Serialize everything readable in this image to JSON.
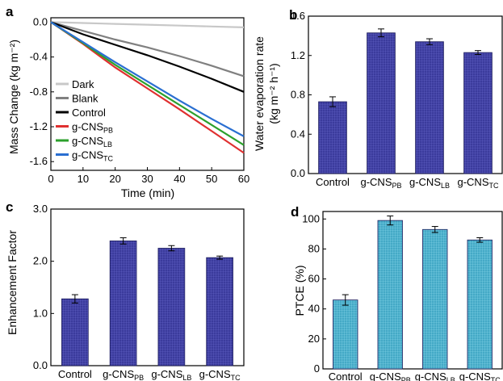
{
  "figure": {
    "panel_labels": [
      "a",
      "b",
      "c",
      "d"
    ]
  },
  "chart_data": [
    {
      "panel": "a",
      "type": "line",
      "xlabel": "Time (min)",
      "ylabel": "Mass Change (kg m⁻²)",
      "xlim": [
        0,
        60
      ],
      "ylim": [
        -1.7,
        0.05
      ],
      "x_ticks": [
        0,
        10,
        20,
        30,
        40,
        50,
        60
      ],
      "y_ticks": [
        0.0,
        -0.4,
        -0.8,
        -1.2,
        -1.6
      ],
      "y_tick_labels": [
        "0.0",
        "-0.4",
        "-0.8",
        "-1.2",
        "-1.6"
      ],
      "legend_position": "left",
      "series": [
        {
          "name": "Dark",
          "color": "#c8c8c8",
          "x": [
            0,
            10,
            20,
            30,
            40,
            50,
            60
          ],
          "y": [
            0,
            -0.01,
            -0.02,
            -0.03,
            -0.04,
            -0.05,
            -0.06
          ]
        },
        {
          "name": "Blank",
          "color": "#808080",
          "x": [
            0,
            10,
            20,
            30,
            40,
            50,
            60
          ],
          "y": [
            0,
            -0.1,
            -0.2,
            -0.29,
            -0.39,
            -0.5,
            -0.62
          ]
        },
        {
          "name": "Control",
          "color": "#000000",
          "x": [
            0,
            10,
            20,
            30,
            40,
            50,
            60
          ],
          "y": [
            0,
            -0.14,
            -0.26,
            -0.38,
            -0.51,
            -0.65,
            -0.8
          ]
        },
        {
          "name": "g-CNS",
          "sub": "PB",
          "color": "#e03030",
          "x": [
            0,
            10,
            20,
            30,
            40,
            50,
            60
          ],
          "y": [
            0,
            -0.25,
            -0.52,
            -0.76,
            -1.0,
            -1.25,
            -1.5
          ]
        },
        {
          "name": "g-CNS",
          "sub": "LB",
          "color": "#2ca02c",
          "x": [
            0,
            10,
            20,
            30,
            40,
            50,
            60
          ],
          "y": [
            0,
            -0.24,
            -0.49,
            -0.72,
            -0.95,
            -1.18,
            -1.41
          ]
        },
        {
          "name": "g-CNS",
          "sub": "TC",
          "color": "#2a6fd1",
          "x": [
            0,
            10,
            20,
            30,
            40,
            50,
            60
          ],
          "y": [
            0,
            -0.23,
            -0.46,
            -0.68,
            -0.9,
            -1.11,
            -1.31
          ]
        }
      ]
    },
    {
      "panel": "b",
      "type": "bar",
      "ylabel": "Water evaporation rate",
      "ylabel_units": "(kg m⁻² h⁻¹)",
      "ylim": [
        0,
        1.6
      ],
      "y_ticks": [
        0.0,
        0.4,
        0.8,
        1.2,
        1.6
      ],
      "y_tick_labels": [
        "0.0",
        "0.4",
        "0.8",
        "1.2",
        "1.6"
      ],
      "categories": [
        {
          "name": "Control",
          "sub": ""
        },
        {
          "name": "g-CNS",
          "sub": "PB"
        },
        {
          "name": "g-CNS",
          "sub": "LB"
        },
        {
          "name": "g-CNS",
          "sub": "TC"
        }
      ],
      "values": [
        0.73,
        1.43,
        1.34,
        1.23
      ],
      "errors": [
        0.05,
        0.04,
        0.03,
        0.02
      ],
      "bar_color": "#3b3b9c"
    },
    {
      "panel": "c",
      "type": "bar",
      "ylabel": "Enhancement Factor",
      "ylim": [
        0,
        3
      ],
      "y_ticks": [
        0.0,
        1.0,
        2.0,
        3.0
      ],
      "y_tick_labels": [
        "0.0",
        "1.0",
        "2.0",
        "3.0"
      ],
      "categories": [
        {
          "name": "Control",
          "sub": ""
        },
        {
          "name": "g-CNS",
          "sub": "PB"
        },
        {
          "name": "g-CNS",
          "sub": "LB"
        },
        {
          "name": "g-CNS",
          "sub": "TC"
        }
      ],
      "values": [
        1.28,
        2.39,
        2.25,
        2.07
      ],
      "errors": [
        0.08,
        0.06,
        0.05,
        0.03
      ],
      "bar_color": "#3b3b9c"
    },
    {
      "panel": "d",
      "type": "bar",
      "ylabel": "PTCE (%)",
      "ylim": [
        0,
        105
      ],
      "y_ticks": [
        0,
        20,
        40,
        60,
        80,
        100
      ],
      "y_tick_labels": [
        "0",
        "20",
        "40",
        "60",
        "80",
        "100"
      ],
      "categories": [
        {
          "name": "Control",
          "sub": ""
        },
        {
          "name": "g-CNS",
          "sub": "PB"
        },
        {
          "name": "g-CNS",
          "sub": "LB"
        },
        {
          "name": "g-CNS",
          "sub": "TC"
        }
      ],
      "values": [
        46,
        99,
        93,
        86
      ],
      "errors": [
        3.5,
        3,
        2,
        1.5
      ],
      "bar_color": "#4bb6cf"
    }
  ]
}
